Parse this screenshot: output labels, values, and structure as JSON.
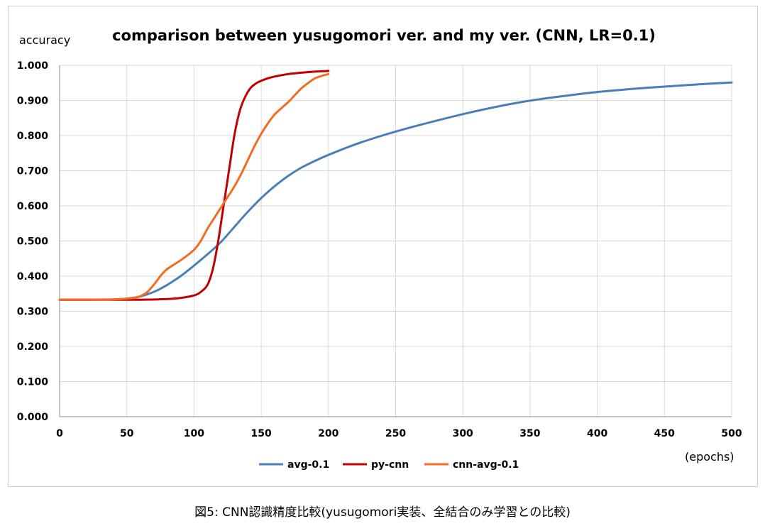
{
  "caption": "図5: CNN認識精度比較(yusugomori実装、全結合のみ学習との比較)",
  "chart_data": {
    "type": "line",
    "title": "comparison between yusugomori ver. and my ver. (CNN, LR=0.1)",
    "xlabel": "(epochs)",
    "ylabel": "accuracy",
    "xlim": [
      0,
      500
    ],
    "ylim": [
      0,
      1
    ],
    "x_ticks": [
      "0",
      "50",
      "100",
      "150",
      "200",
      "250",
      "300",
      "350",
      "400",
      "450",
      "500"
    ],
    "y_ticks": [
      "0.000",
      "0.100",
      "0.200",
      "0.300",
      "0.400",
      "0.500",
      "0.600",
      "0.700",
      "0.800",
      "0.900",
      "1.000"
    ],
    "grid": true,
    "legend_position": "bottom",
    "series": [
      {
        "name": "avg-0.1",
        "color": "#4a7ebb",
        "x": [
          0,
          20,
          40,
          50,
          60,
          70,
          80,
          90,
          100,
          110,
          120,
          130,
          140,
          150,
          160,
          170,
          180,
          190,
          200,
          220,
          240,
          260,
          280,
          300,
          320,
          340,
          360,
          380,
          400,
          420,
          440,
          460,
          480,
          500
        ],
        "y": [
          0.333,
          0.333,
          0.334,
          0.336,
          0.342,
          0.355,
          0.375,
          0.4,
          0.43,
          0.462,
          0.497,
          0.54,
          0.583,
          0.622,
          0.656,
          0.685,
          0.709,
          0.728,
          0.745,
          0.775,
          0.8,
          0.822,
          0.842,
          0.861,
          0.878,
          0.893,
          0.905,
          0.915,
          0.924,
          0.931,
          0.937,
          0.942,
          0.947,
          0.951
        ]
      },
      {
        "name": "py-cnn",
        "color": "#c00000",
        "x": [
          0,
          20,
          40,
          60,
          80,
          90,
          100,
          105,
          110,
          114,
          118,
          122,
          126,
          130,
          134,
          138,
          142,
          146,
          150,
          155,
          160,
          170,
          180,
          190,
          200
        ],
        "y": [
          0.333,
          0.333,
          0.333,
          0.333,
          0.335,
          0.338,
          0.345,
          0.355,
          0.375,
          0.42,
          0.5,
          0.6,
          0.7,
          0.8,
          0.87,
          0.91,
          0.935,
          0.948,
          0.956,
          0.963,
          0.968,
          0.975,
          0.979,
          0.982,
          0.984
        ]
      },
      {
        "name": "cnn-avg-0.1",
        "color": "#f36c21",
        "x": [
          0,
          20,
          40,
          55,
          60,
          65,
          70,
          75,
          80,
          90,
          100,
          105,
          110,
          115,
          120,
          125,
          130,
          135,
          140,
          145,
          150,
          155,
          160,
          165,
          170,
          175,
          180,
          185,
          190,
          195,
          200
        ],
        "y": [
          0.333,
          0.333,
          0.334,
          0.338,
          0.343,
          0.354,
          0.375,
          0.4,
          0.42,
          0.445,
          0.475,
          0.5,
          0.535,
          0.565,
          0.595,
          0.625,
          0.655,
          0.69,
          0.73,
          0.77,
          0.805,
          0.835,
          0.86,
          0.878,
          0.895,
          0.915,
          0.935,
          0.95,
          0.963,
          0.97,
          0.975
        ]
      }
    ]
  }
}
